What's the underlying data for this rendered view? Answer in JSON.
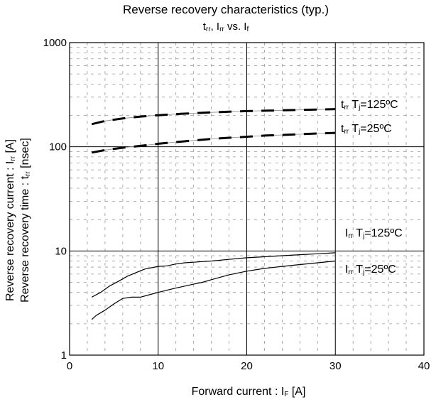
{
  "chart_data": {
    "type": "line",
    "title": "Reverse recovery characteristics (typ.)",
    "subtitle": {
      "t": "t",
      "t_sub": "rr",
      "sep1": ", I",
      "i_sub": "rr",
      "mid": " vs. I",
      "f_sub": "f"
    },
    "xlabel": {
      "main": "Forward current : I",
      "sub": "F",
      "unit": " [A]"
    },
    "ylabel": {
      "line1": {
        "main": "Reverse recovery current : I",
        "sub": "rr",
        "unit": " [A]"
      },
      "line2": {
        "main": "Reverse recovery time : t",
        "sub": "rr",
        "unit": " [nsec]"
      }
    },
    "xlim": [
      0,
      40
    ],
    "ylim": [
      1,
      1000
    ],
    "yscale": "log",
    "x_ticks": [
      "0",
      "10",
      "20",
      "30",
      "40"
    ],
    "y_ticks": [
      "1",
      "10",
      "100",
      "1000"
    ],
    "grid": "major solid, minor dashed",
    "series": [
      {
        "key": "trr125",
        "label": {
          "sym": "t",
          "sym_sub": "rr",
          "t": " T",
          "t_sub": "j",
          "temp": "=125ºC"
        },
        "style": "dashed",
        "x": [
          2.5,
          4,
          6,
          8,
          10,
          12,
          14,
          16,
          18,
          20,
          22,
          24,
          26,
          28,
          30
        ],
        "values": [
          165,
          177,
          187,
          195,
          201,
          206,
          210,
          214,
          217,
          220,
          222,
          224,
          226,
          228,
          230
        ]
      },
      {
        "key": "trr25",
        "label": {
          "sym": "t",
          "sym_sub": "rr",
          "t": " T",
          "t_sub": "j",
          "temp": "=25ºC"
        },
        "style": "dashed",
        "x": [
          2.5,
          4,
          6,
          8,
          10,
          12,
          14,
          16,
          18,
          20,
          22,
          24,
          26,
          28,
          30
        ],
        "values": [
          88,
          93,
          98,
          102,
          107,
          111,
          115,
          119,
          122,
          125,
          128,
          130,
          132,
          134,
          136
        ]
      },
      {
        "key": "irr125",
        "label": {
          "sym": "I",
          "sym_sub": "rr",
          "t": " T",
          "t_sub": "j",
          "temp": "=125ºC"
        },
        "style": "solid",
        "x": [
          2.5,
          3.5,
          4.5,
          5.5,
          6.5,
          7.5,
          8.5,
          10,
          11,
          12,
          13,
          14,
          15,
          16,
          18,
          20,
          22,
          24,
          26,
          28,
          30
        ],
        "values": [
          3.6,
          4.0,
          4.6,
          5.1,
          5.7,
          6.2,
          6.7,
          7.1,
          7.2,
          7.5,
          7.7,
          7.8,
          7.9,
          8.0,
          8.3,
          8.6,
          8.8,
          9.0,
          9.2,
          9.4,
          9.6
        ]
      },
      {
        "key": "irr25",
        "label": {
          "sym": "I",
          "sym_sub": "rr",
          "t": " T",
          "t_sub": "j",
          "temp": "=25ºC"
        },
        "style": "solid",
        "x": [
          2.5,
          3,
          4,
          5,
          6,
          7,
          8,
          9,
          10,
          11,
          12,
          13,
          14,
          15,
          16,
          18,
          20,
          22,
          24,
          26,
          28,
          30
        ],
        "values": [
          2.2,
          2.4,
          2.7,
          3.1,
          3.5,
          3.6,
          3.6,
          3.8,
          4.0,
          4.2,
          4.4,
          4.6,
          4.8,
          5.0,
          5.3,
          5.9,
          6.4,
          6.8,
          7.1,
          7.4,
          7.7,
          8.0
        ]
      }
    ]
  }
}
